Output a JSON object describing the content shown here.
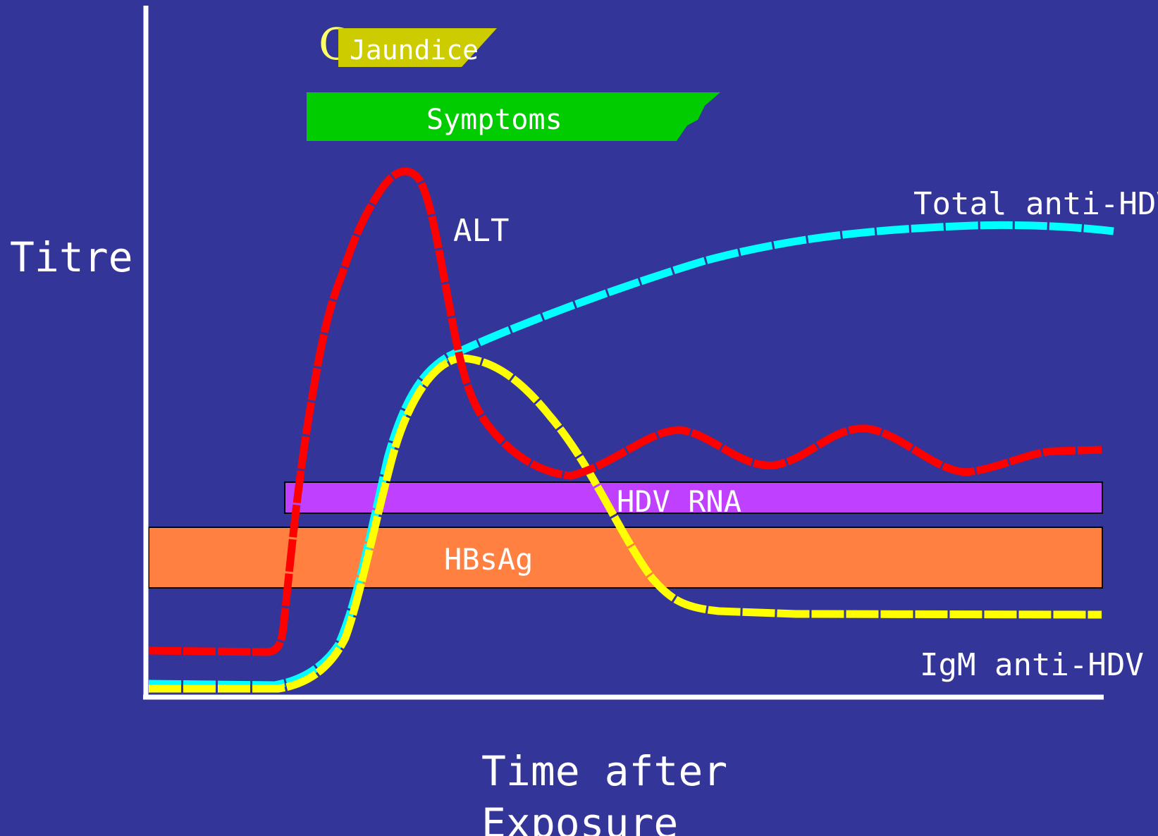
{
  "slide": {
    "title_visible_part": "Course",
    "background_color": "#343599",
    "title_color": "#FFFF66"
  },
  "axes": {
    "ylabel": "Titre",
    "xlabel_line1": "Time after",
    "xlabel_line2": "Exposure",
    "axis_color": "#FFFFFF"
  },
  "phases": {
    "jaundice": {
      "label": "Jaundice",
      "color": "#CCCC00"
    },
    "symptoms": {
      "label": "Symptoms",
      "color": "#00CC00"
    }
  },
  "markers": {
    "hdv_rna": {
      "label": "HDV RNA",
      "color": "#BF40FF"
    },
    "hbsag": {
      "label": "HBsAg",
      "color": "#FF8040"
    }
  },
  "curves": {
    "alt": {
      "label": "ALT",
      "color": "#FF0000"
    },
    "total_anti_hdv": {
      "label": "Total anti-HDV",
      "color": "#00FFFF"
    },
    "igm_anti_hdv": {
      "label": "IgM anti-HDV",
      "color": "#FFFF00"
    }
  }
}
